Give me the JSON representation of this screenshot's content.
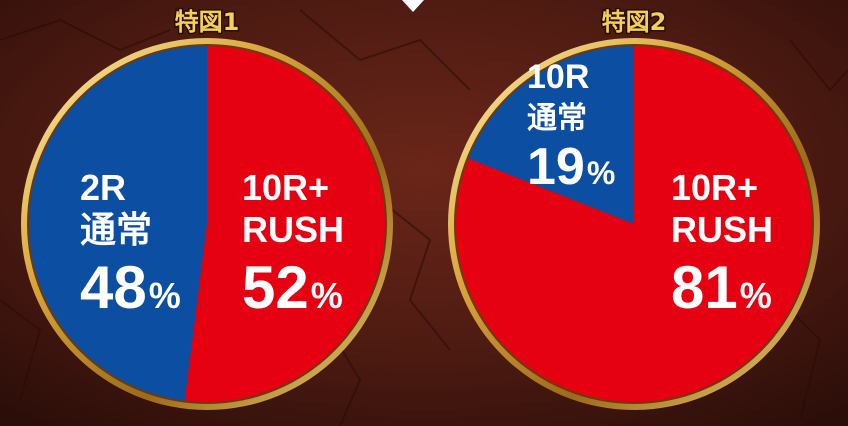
{
  "colors": {
    "blue": "#0b4ea2",
    "red": "#e50012",
    "gold": "#d8a93c",
    "title": "#f3d05a",
    "background": "#4a1a14"
  },
  "chart_data": [
    {
      "type": "pie",
      "title": "特図1",
      "series": [
        {
          "label_lines": [
            "2R",
            "通常"
          ],
          "value": 48,
          "value_label": "48",
          "unit": "%",
          "color": "#0b4ea2"
        },
        {
          "label_lines": [
            "10R+",
            "RUSH"
          ],
          "value": 52,
          "value_label": "52",
          "unit": "%",
          "color": "#e50012"
        }
      ]
    },
    {
      "type": "pie",
      "title": "特図2",
      "series": [
        {
          "label_lines": [
            "10R",
            "通常"
          ],
          "value": 19,
          "value_label": "19",
          "unit": "%",
          "color": "#0b4ea2"
        },
        {
          "label_lines": [
            "10R+",
            "RUSH"
          ],
          "value": 81,
          "value_label": "81",
          "unit": "%",
          "color": "#e50012"
        }
      ]
    }
  ]
}
